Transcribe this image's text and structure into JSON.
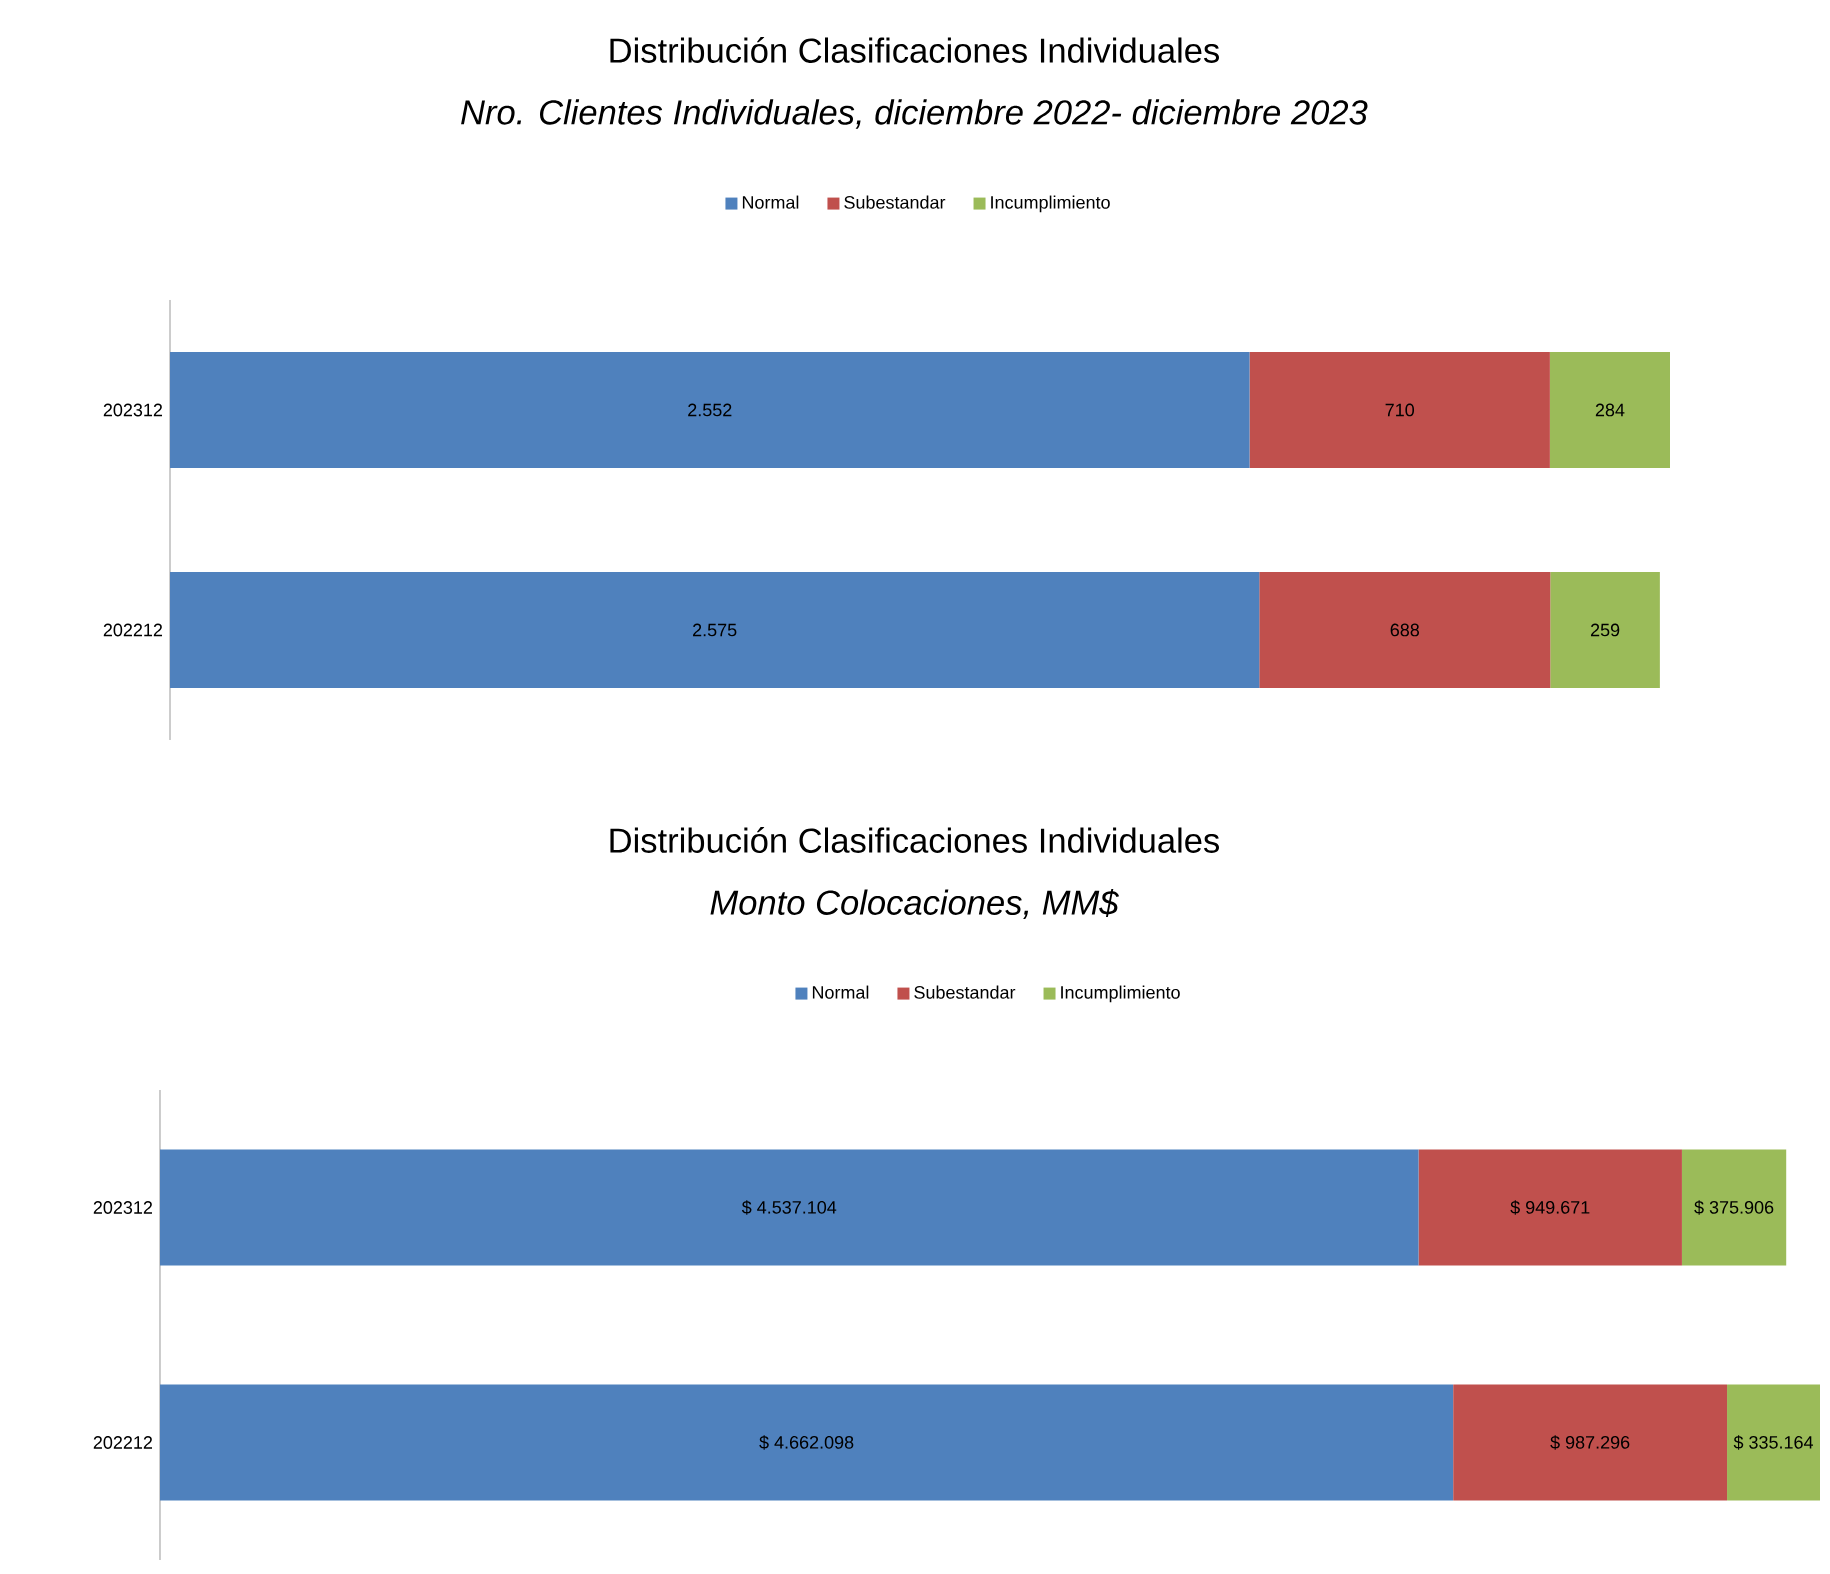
{
  "chart_data": [
    {
      "type": "bar",
      "orientation": "horizontal",
      "stacked": true,
      "title": "Distribución Clasificaciones Individuales",
      "subtitle": "Nro. Clientes Individuales, diciembre 2022- diciembre 2023",
      "categories": [
        "202312",
        "202212"
      ],
      "legend": "top",
      "tick_labels": "y",
      "series": [
        {
          "name": "Normal",
          "color": "#4f81bd",
          "values": [
            2552,
            2575
          ],
          "value_labels": [
            "2.552",
            "2.575"
          ]
        },
        {
          "name": "Subestandar",
          "color": "#c0504d",
          "values": [
            710,
            688
          ],
          "value_labels": [
            "710",
            "688"
          ]
        },
        {
          "name": "Incumplimiento",
          "color": "#9bbb59",
          "values": [
            284,
            259
          ],
          "value_labels": [
            "284",
            "259"
          ]
        }
      ]
    },
    {
      "type": "bar",
      "orientation": "horizontal",
      "stacked": true,
      "title": "Distribución Clasificaciones Individuales",
      "subtitle": "Monto Colocaciones, MM$",
      "categories": [
        "202312",
        "202212"
      ],
      "legend": "top",
      "tick_labels": "y",
      "series": [
        {
          "name": "Normal",
          "color": "#4f81bd",
          "values": [
            4537104,
            4662098
          ],
          "value_labels": [
            "$ 4.537.104",
            "$ 4.662.098"
          ]
        },
        {
          "name": "Subestandar",
          "color": "#c0504d",
          "values": [
            949671,
            987296
          ],
          "value_labels": [
            "$ 949.671",
            "$ 987.296"
          ]
        },
        {
          "name": "Incumplimiento",
          "color": "#9bbb59",
          "values": [
            375906,
            335164
          ],
          "value_labels": [
            "$ 375.906",
            "$ 335.164"
          ]
        }
      ]
    }
  ]
}
